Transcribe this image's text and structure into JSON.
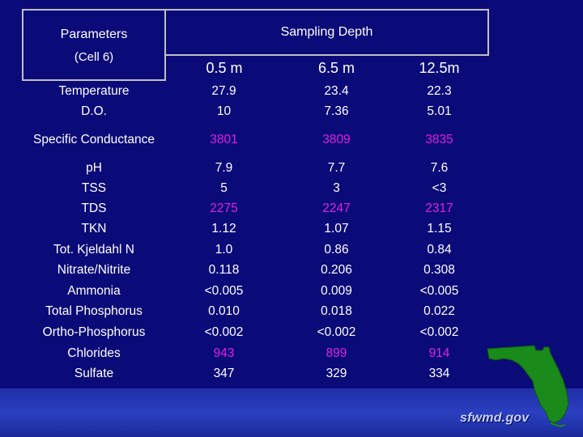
{
  "header": {
    "parameters_label": "Parameters",
    "cell_label": "(Cell 6)",
    "sampling_depth_label": "Sampling Depth",
    "depths": [
      "0.5 m",
      "6.5 m",
      "12.5m"
    ]
  },
  "rows": [
    {
      "param": "Temperature",
      "values": [
        "27.9",
        "23.4",
        "22.3"
      ],
      "highlight": false
    },
    {
      "param": "D.O.",
      "values": [
        "10",
        "7.36",
        "5.01"
      ],
      "highlight": false
    },
    {
      "param": "Specific Conductance",
      "values": [
        "3801",
        "3809",
        "3835"
      ],
      "highlight": true
    },
    {
      "param": "pH",
      "values": [
        "7.9",
        "7.7",
        "7.6"
      ],
      "highlight": false
    },
    {
      "param": "TSS",
      "values": [
        "5",
        "3",
        "<3"
      ],
      "highlight": false
    },
    {
      "param": "TDS",
      "values": [
        "2275",
        "2247",
        "2317"
      ],
      "highlight": true
    },
    {
      "param": "TKN",
      "values": [
        "1.12",
        "1.07",
        "1.15"
      ],
      "highlight": false
    },
    {
      "param": "Tot. Kjeldahl N",
      "values": [
        "1.0",
        "0.86",
        "0.84"
      ],
      "highlight": false
    },
    {
      "param": "Nitrate/Nitrite",
      "values": [
        "0.118",
        "0.206",
        "0.308"
      ],
      "highlight": false
    },
    {
      "param": "Ammonia",
      "values": [
        "<0.005",
        "0.009",
        "<0.005"
      ],
      "highlight": false
    },
    {
      "param": "Total Phosphorus",
      "values": [
        "0.010",
        "0.018",
        "0.022"
      ],
      "highlight": false
    },
    {
      "param": "Ortho-Phosphorus",
      "values": [
        "<0.002",
        "<0.002",
        "<0.002"
      ],
      "highlight": false
    },
    {
      "param": "Chlorides",
      "values": [
        "943",
        "899",
        "914"
      ],
      "highlight": true
    },
    {
      "param": "Sulfate",
      "values": [
        "347",
        "329",
        "334"
      ],
      "highlight": false
    }
  ],
  "logo": {
    "text": "sfwmd.gov"
  },
  "colors": {
    "background": "#0a0a78",
    "text": "#ffffff",
    "highlight": "#e020e0",
    "map": "#1a8a1a"
  }
}
